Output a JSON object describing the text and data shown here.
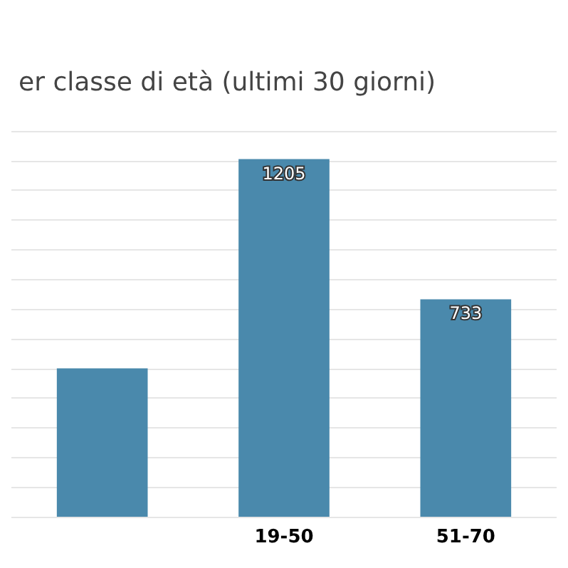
{
  "chart_data": {
    "type": "bar",
    "title": "er classe di età (ultimi 30 giorni)",
    "categories": [
      null,
      "19-50",
      "51-70"
    ],
    "values": [
      500,
      1205,
      733
    ],
    "value_labels": [
      null,
      "1205",
      "733"
    ],
    "color": "#4a89ac",
    "ylim": [
      0,
      1300
    ],
    "yticks": [
      {
        "value": 0,
        "label": null
      },
      {
        "value": 100,
        "label": null
      },
      {
        "value": 200,
        "label": null
      },
      {
        "value": 300,
        "label": null
      },
      {
        "value": 400,
        "label": null
      },
      {
        "value": 500,
        "label": null
      },
      {
        "value": 600,
        "label": null
      },
      {
        "value": 700,
        "label": null
      },
      {
        "value": 800,
        "label": null
      },
      {
        "value": 900,
        "label": null
      },
      {
        "value": 1000,
        "label": null
      },
      {
        "value": 1100,
        "label": null
      },
      {
        "value": 1200,
        "label": null
      },
      {
        "value": 1300,
        "label": null
      }
    ],
    "grid": "y"
  }
}
